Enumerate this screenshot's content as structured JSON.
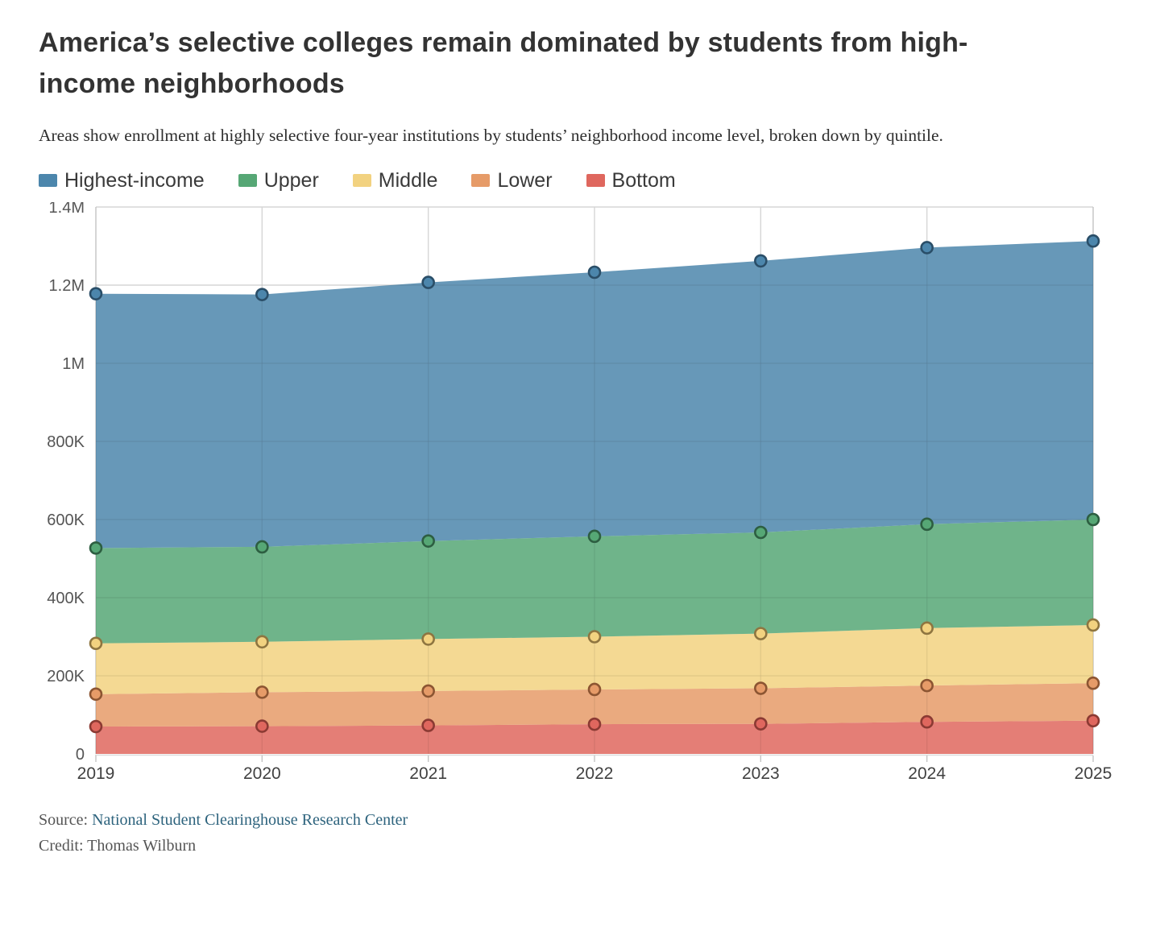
{
  "header": {
    "title": "America’s selective colleges remain dominated by students from high-income neighborhoods",
    "subtitle": "Areas show enrollment at highly selective four-year institutions by students’ neighborhood income level, broken down by quintile."
  },
  "legend": {
    "items": [
      {
        "label": "Highest-income",
        "color": "#4c86ac"
      },
      {
        "label": "Upper",
        "color": "#56a775"
      },
      {
        "label": "Middle",
        "color": "#f2d280"
      },
      {
        "label": "Lower",
        "color": "#e69b68"
      },
      {
        "label": "Bottom",
        "color": "#df675e"
      }
    ]
  },
  "chart_data": {
    "type": "area",
    "stacked": true,
    "title": "America’s selective colleges remain dominated by students from high-income neighborhoods",
    "xlabel": "",
    "ylabel": "",
    "x": [
      2019,
      2020,
      2021,
      2022,
      2023,
      2024,
      2025
    ],
    "x_tick_labels": [
      "2019",
      "2020",
      "2021",
      "2022",
      "2023",
      "2024",
      "2025"
    ],
    "y_ticks": [
      0,
      200000,
      400000,
      600000,
      800000,
      1000000,
      1200000,
      1400000
    ],
    "y_tick_labels": [
      "0",
      "200K",
      "400K",
      "600K",
      "800K",
      "1M",
      "1.2M",
      "1.4M"
    ],
    "ylim": [
      0,
      1400000
    ],
    "grid": true,
    "legend_position": "top",
    "markers": "circle",
    "series": [
      {
        "name": "Highest-income",
        "color": "#4c86ac",
        "dot_stroke": "#2a4e68",
        "values": [
          651000,
          646000,
          662000,
          676000,
          695000,
          708000,
          713000
        ],
        "cumulative": [
          1178000,
          1176000,
          1207000,
          1233000,
          1262000,
          1296000,
          1313000
        ]
      },
      {
        "name": "Upper",
        "color": "#56a775",
        "dot_stroke": "#2d5e41",
        "values": [
          244000,
          243000,
          251000,
          257000,
          259000,
          266000,
          270000
        ],
        "cumulative": [
          527000,
          530000,
          545000,
          557000,
          567000,
          588000,
          600000
        ]
      },
      {
        "name": "Middle",
        "color": "#f2d280",
        "dot_stroke": "#8e7540",
        "values": [
          130000,
          129000,
          133000,
          135000,
          140000,
          147000,
          149000
        ],
        "cumulative": [
          283000,
          287000,
          294000,
          300000,
          308000,
          322000,
          330000
        ]
      },
      {
        "name": "Lower",
        "color": "#e69b68",
        "dot_stroke": "#8c5532",
        "values": [
          83000,
          87000,
          88000,
          89000,
          91000,
          93000,
          96000
        ],
        "cumulative": [
          153000,
          158000,
          161000,
          165000,
          168000,
          175000,
          181000
        ]
      },
      {
        "name": "Bottom",
        "color": "#df675e",
        "dot_stroke": "#8b3a33",
        "values": [
          70000,
          71000,
          73000,
          76000,
          77000,
          82000,
          85000
        ],
        "cumulative": [
          70000,
          71000,
          73000,
          76000,
          77000,
          82000,
          85000
        ]
      }
    ]
  },
  "footer": {
    "source_label": "Source: ",
    "source_link": "National Student Clearinghouse Research Center",
    "credit_text": "Credit: Thomas Wilburn"
  }
}
